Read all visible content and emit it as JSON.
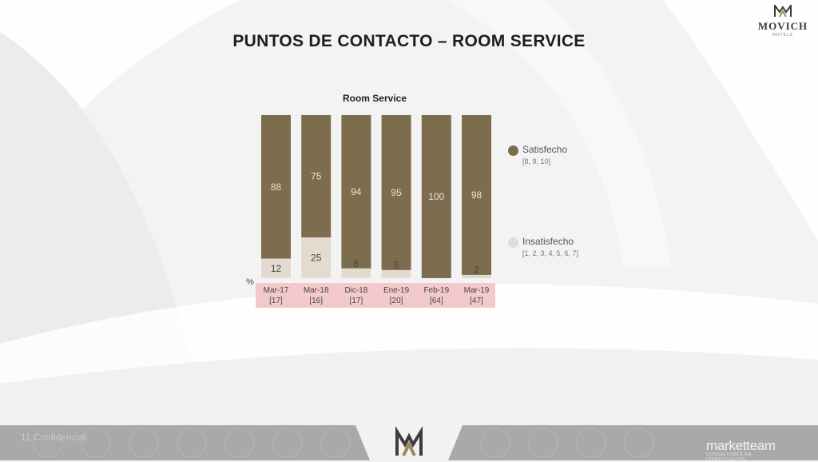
{
  "header": {
    "title": "PUNTOS DE CONTACTO – ROOM SERVICE",
    "brand_name": "MOVICH",
    "brand_sub": "HOTELS"
  },
  "chart_data": {
    "type": "bar",
    "stacked": true,
    "title": "Room Service",
    "unit_label": "%",
    "categories": [
      "Mar-17",
      "Mar-18",
      "Dic-18",
      "Ene-19",
      "Feb-19",
      "Mar-19"
    ],
    "sample_sizes": [
      "[17]",
      "[16]",
      "[17]",
      "[20]",
      "[64]",
      "[47]"
    ],
    "ylim": [
      0,
      100
    ],
    "grid": false,
    "legend_position": "right",
    "series": [
      {
        "name": "Insatisfecho",
        "scale": "[1, 2, 3, 4, 5, 6, 7]",
        "color": "#e3dbd0",
        "values": [
          12,
          25,
          6,
          5,
          0,
          2
        ]
      },
      {
        "name": "Satisfecho",
        "scale": "[8, 9, 10]",
        "color": "#7d6c4d",
        "values": [
          88,
          75,
          94,
          95,
          100,
          98
        ]
      }
    ],
    "label_bg_color": "#f4c9cc"
  },
  "footer": {
    "left_text": "11        Confidencial",
    "right_brand": "marketteam",
    "right_sub": "CONSULTORES EN INVESTIGACIÓN"
  }
}
